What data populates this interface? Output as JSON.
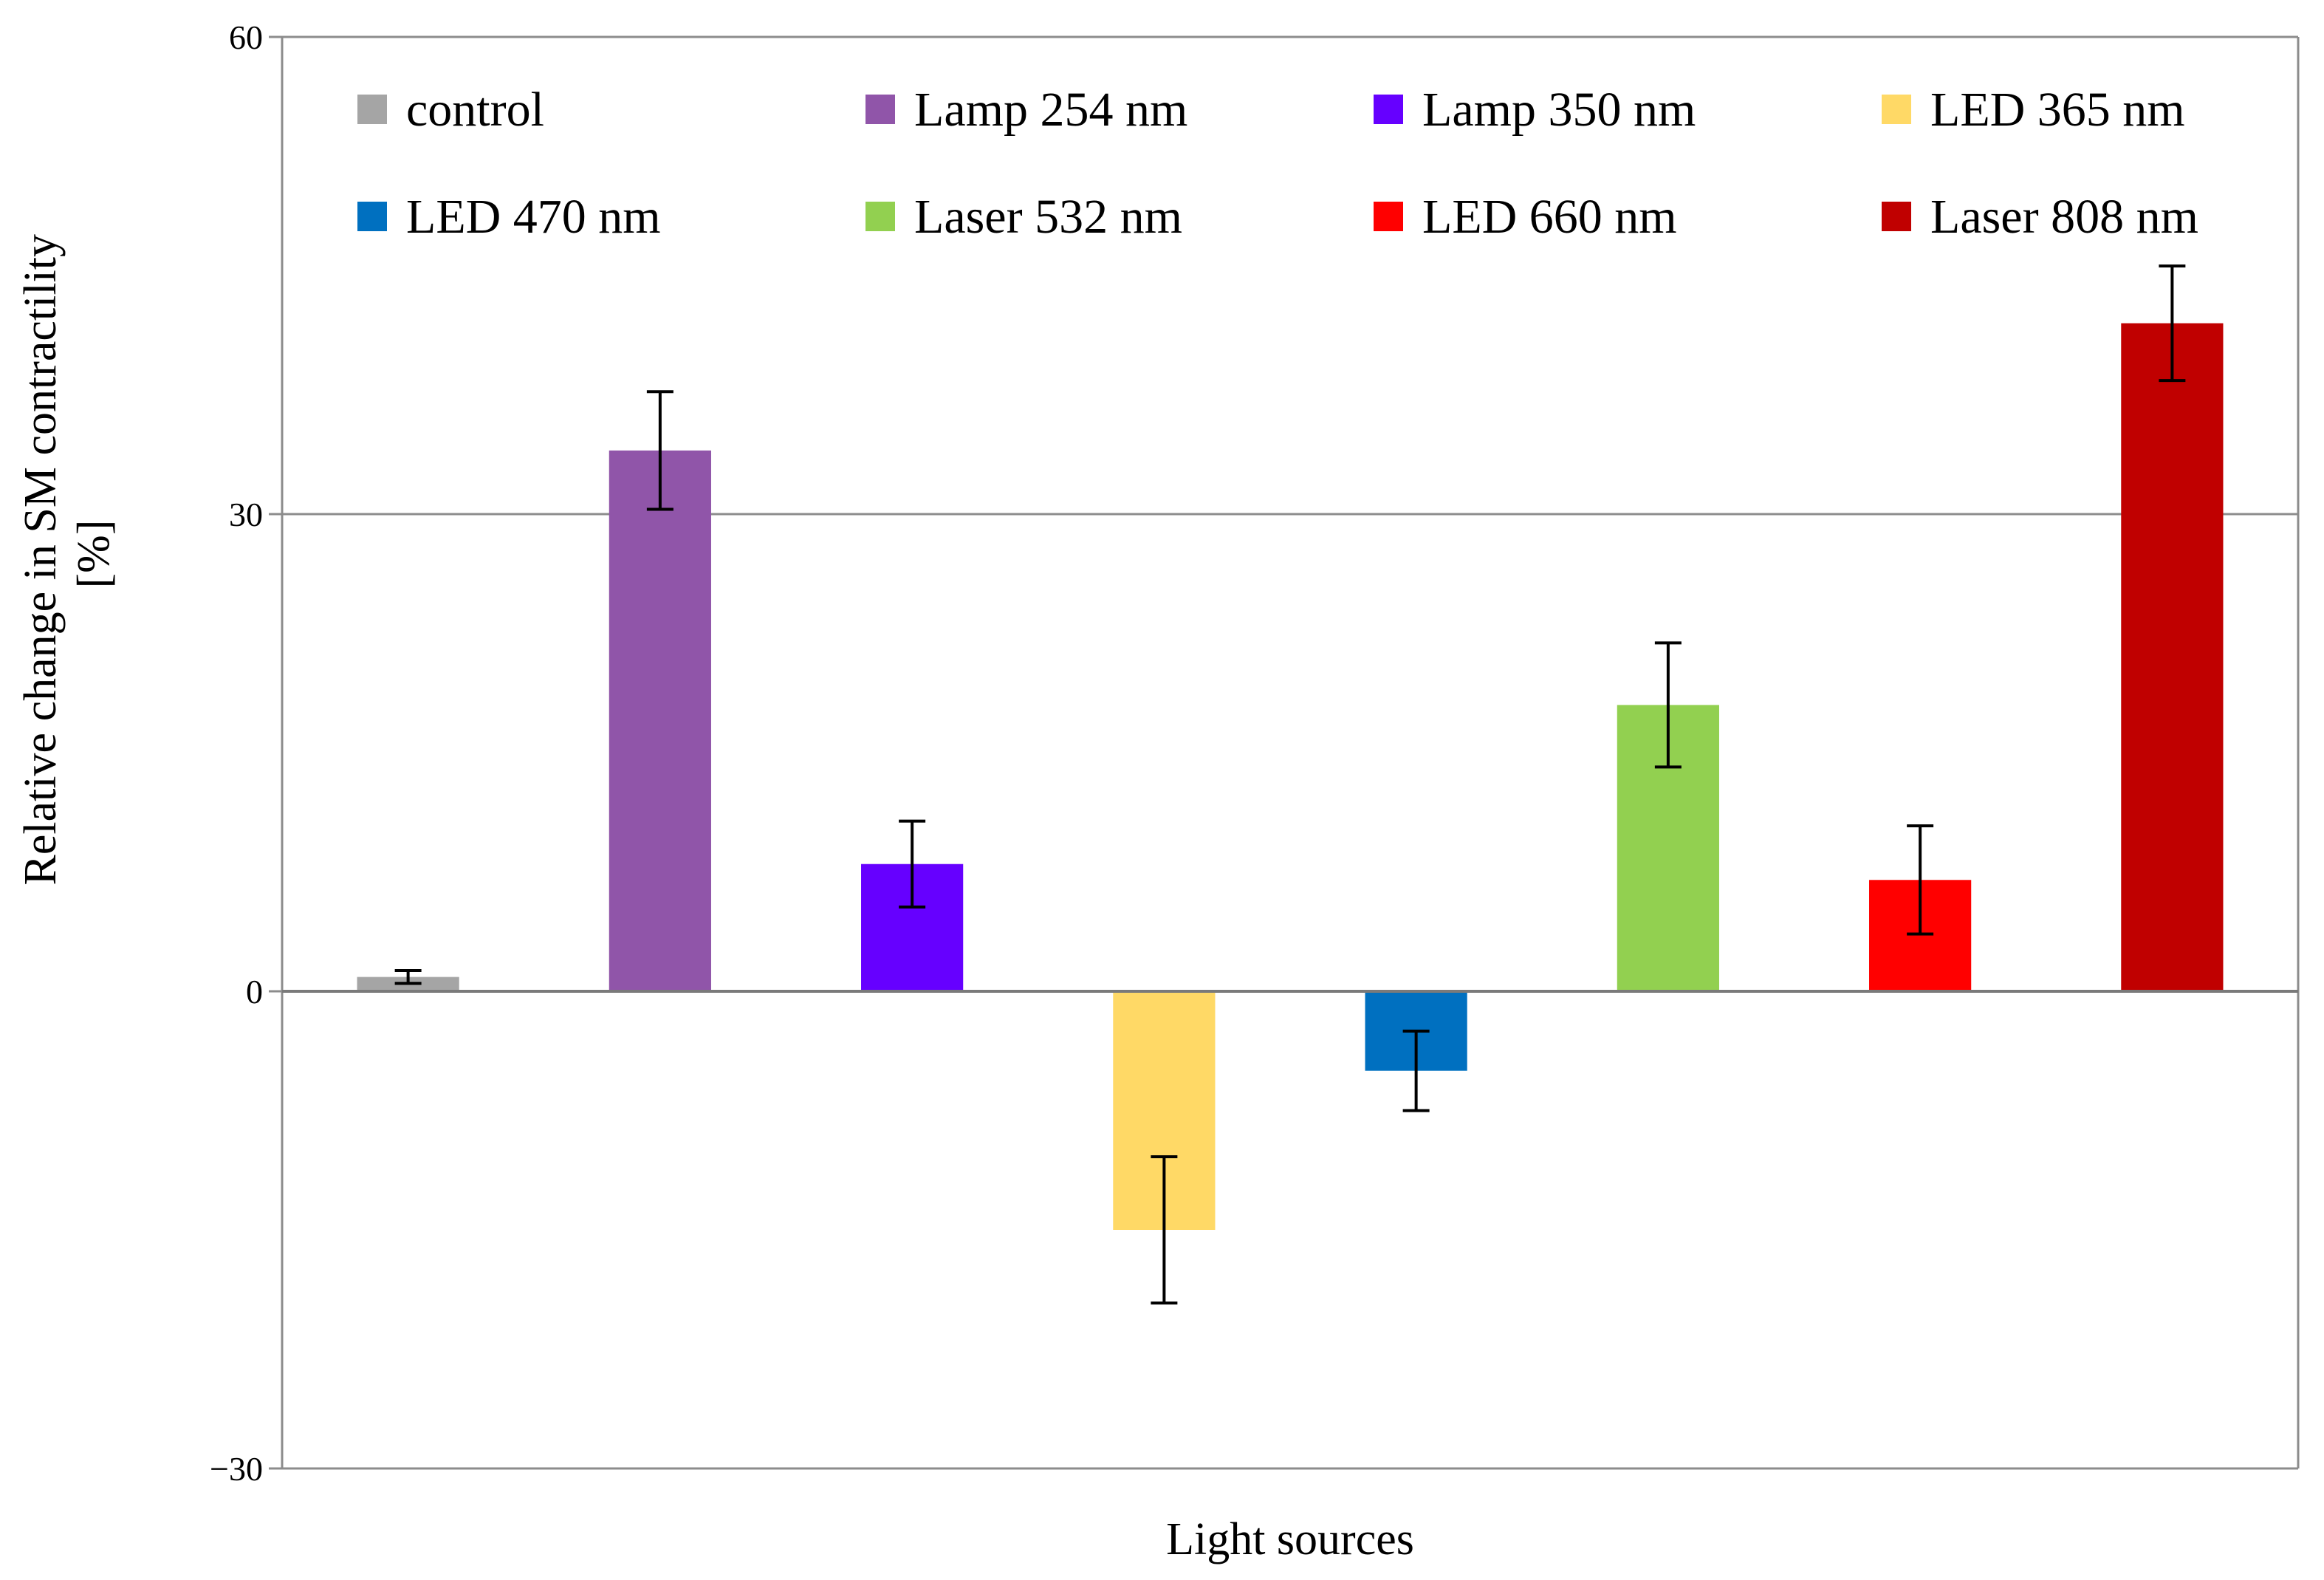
{
  "chart_data": {
    "type": "bar",
    "title": "",
    "xlabel": "Light sources",
    "ylabel_lines": [
      "Relative change in SM contractility",
      "[%]"
    ],
    "ylim": [
      -30,
      60
    ],
    "yticks": [
      {
        "value": 60,
        "label": "60"
      },
      {
        "value": 30,
        "label": "30"
      },
      {
        "value": 0,
        "label": "0"
      },
      {
        "value": -30,
        "label": "−30"
      }
    ],
    "grid": true,
    "legend_position": "top",
    "series": [
      {
        "name": "control",
        "value": 0.9,
        "error": 0.4,
        "color": "#a5a5a5"
      },
      {
        "name": "Lamp 254 nm",
        "value": 34.0,
        "error": 3.7,
        "color": "#9055a9"
      },
      {
        "name": "Lamp 350 nm",
        "value": 8.0,
        "error": 2.7,
        "color": "#6600ff"
      },
      {
        "name": "LED 365 nm",
        "value": -15.0,
        "error": 4.6,
        "color": "#ffd966"
      },
      {
        "name": "LED 470 nm",
        "value": -5.0,
        "error": 2.5,
        "color": "#0070c0"
      },
      {
        "name": "Laser 532 nm",
        "value": 18.0,
        "error": 3.9,
        "color": "#92d050"
      },
      {
        "name": "LED 660 nm",
        "value": 7.0,
        "error": 3.4,
        "color": "#ff0000"
      },
      {
        "name": "Laser 808 nm",
        "value": 42.0,
        "error": 3.6,
        "color": "#c00000"
      }
    ]
  }
}
